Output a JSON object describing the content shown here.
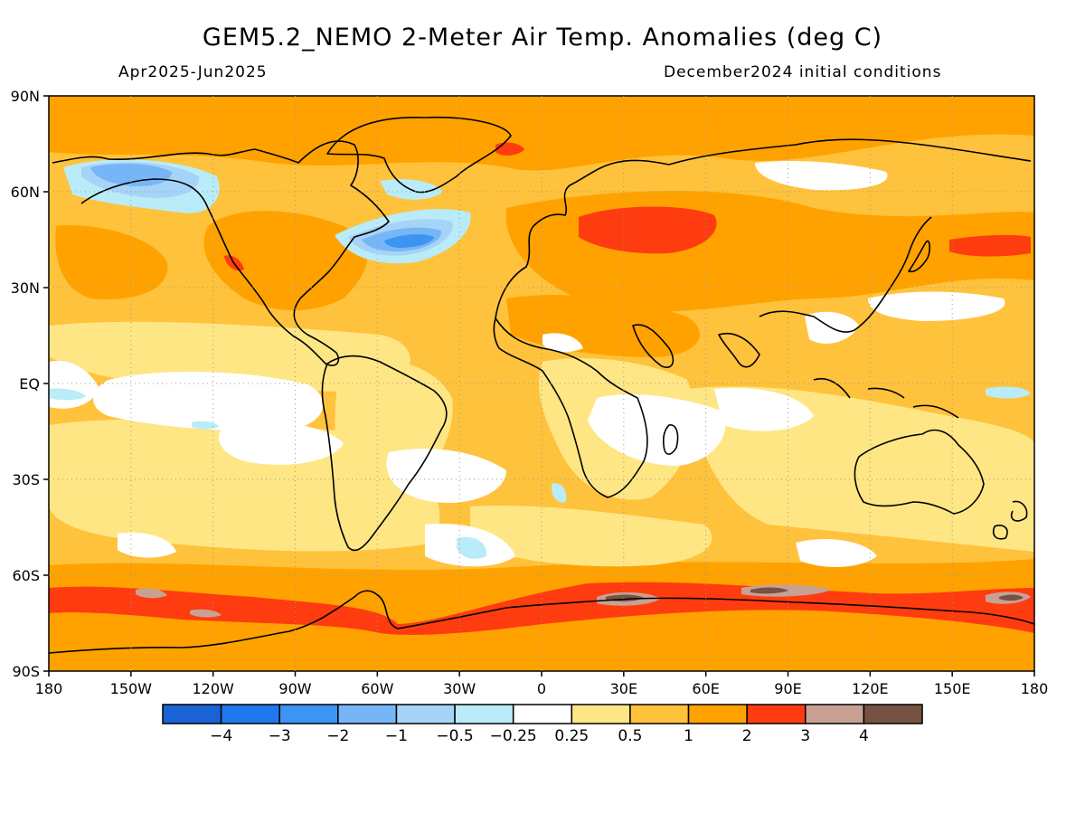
{
  "title": "GEM5.2_NEMO 2-Meter Air Temp. Anomalies (deg C)",
  "subtitle_left": "Apr2025-Jun2025",
  "subtitle_right": "December2024 initial conditions",
  "map": {
    "projection": "equirectangular",
    "lon_range": [
      -180,
      180
    ],
    "lat_range": [
      -90,
      90
    ],
    "lat_labels": [
      "90N",
      "60N",
      "30N",
      "EQ",
      "30S",
      "60S",
      "90S"
    ],
    "lon_labels": [
      "180",
      "150W",
      "120W",
      "90W",
      "60W",
      "30W",
      "0",
      "30E",
      "60E",
      "90E",
      "120E",
      "150E",
      "180"
    ],
    "grid": "dotted",
    "coastlines": true
  },
  "colorbar": {
    "colors": [
      "#1a63d6",
      "#1f78ee",
      "#3c95f2",
      "#77b6f6",
      "#a6d3f8",
      "#b9ecf8",
      "#ffffff",
      "#ffe685",
      "#ffc23c",
      "#ffa200",
      "#ff3c0f",
      "#c8a193",
      "#765242"
    ],
    "labels": [
      "-4",
      "-3",
      "-2",
      "-1",
      "-0.5",
      "-0.25",
      "0.25",
      "0.5",
      "1",
      "2",
      "3",
      "4"
    ]
  },
  "chart_data": {
    "type": "heatmap",
    "title": "GEM5.2_NEMO 2-Meter Air Temp. Anomalies (deg C)",
    "period": "Apr2025-Jun2025",
    "initial_conditions": "December2024 initial conditions",
    "units": "deg C",
    "x_range": [
      -180,
      180
    ],
    "y_range": [
      -90,
      90
    ],
    "contour_levels": [
      -4,
      -3,
      -2,
      -1,
      -0.5,
      -0.25,
      0.25,
      0.5,
      1,
      2,
      3,
      4
    ],
    "dominant_value_bins": [
      {
        "lon_range": [
          -180,
          180
        ],
        "lat_range": [
          60,
          90
        ],
        "category": "1 to 2"
      },
      {
        "lon_range": [
          20,
          60
        ],
        "lat_range": [
          40,
          58
        ],
        "category": "2 to 3"
      },
      {
        "lon_range": [
          -165,
          -125
        ],
        "lat_range": [
          57,
          70
        ],
        "category": "-2 to -1"
      },
      {
        "lon_range": [
          -65,
          -35
        ],
        "lat_range": [
          38,
          48
        ],
        "category": "-2 to -1"
      },
      {
        "lon_range": [
          -170,
          -80
        ],
        "lat_range": [
          -20,
          10
        ],
        "category": "-0.25 to 0.25"
      },
      {
        "lon_range": [
          -180,
          180
        ],
        "lat_range": [
          -72,
          -62
        ],
        "category": "2 to 3"
      },
      {
        "lon_range": [
          -180,
          180
        ],
        "lat_range": [
          -90,
          -73
        ],
        "category": "1 to 2"
      }
    ]
  }
}
